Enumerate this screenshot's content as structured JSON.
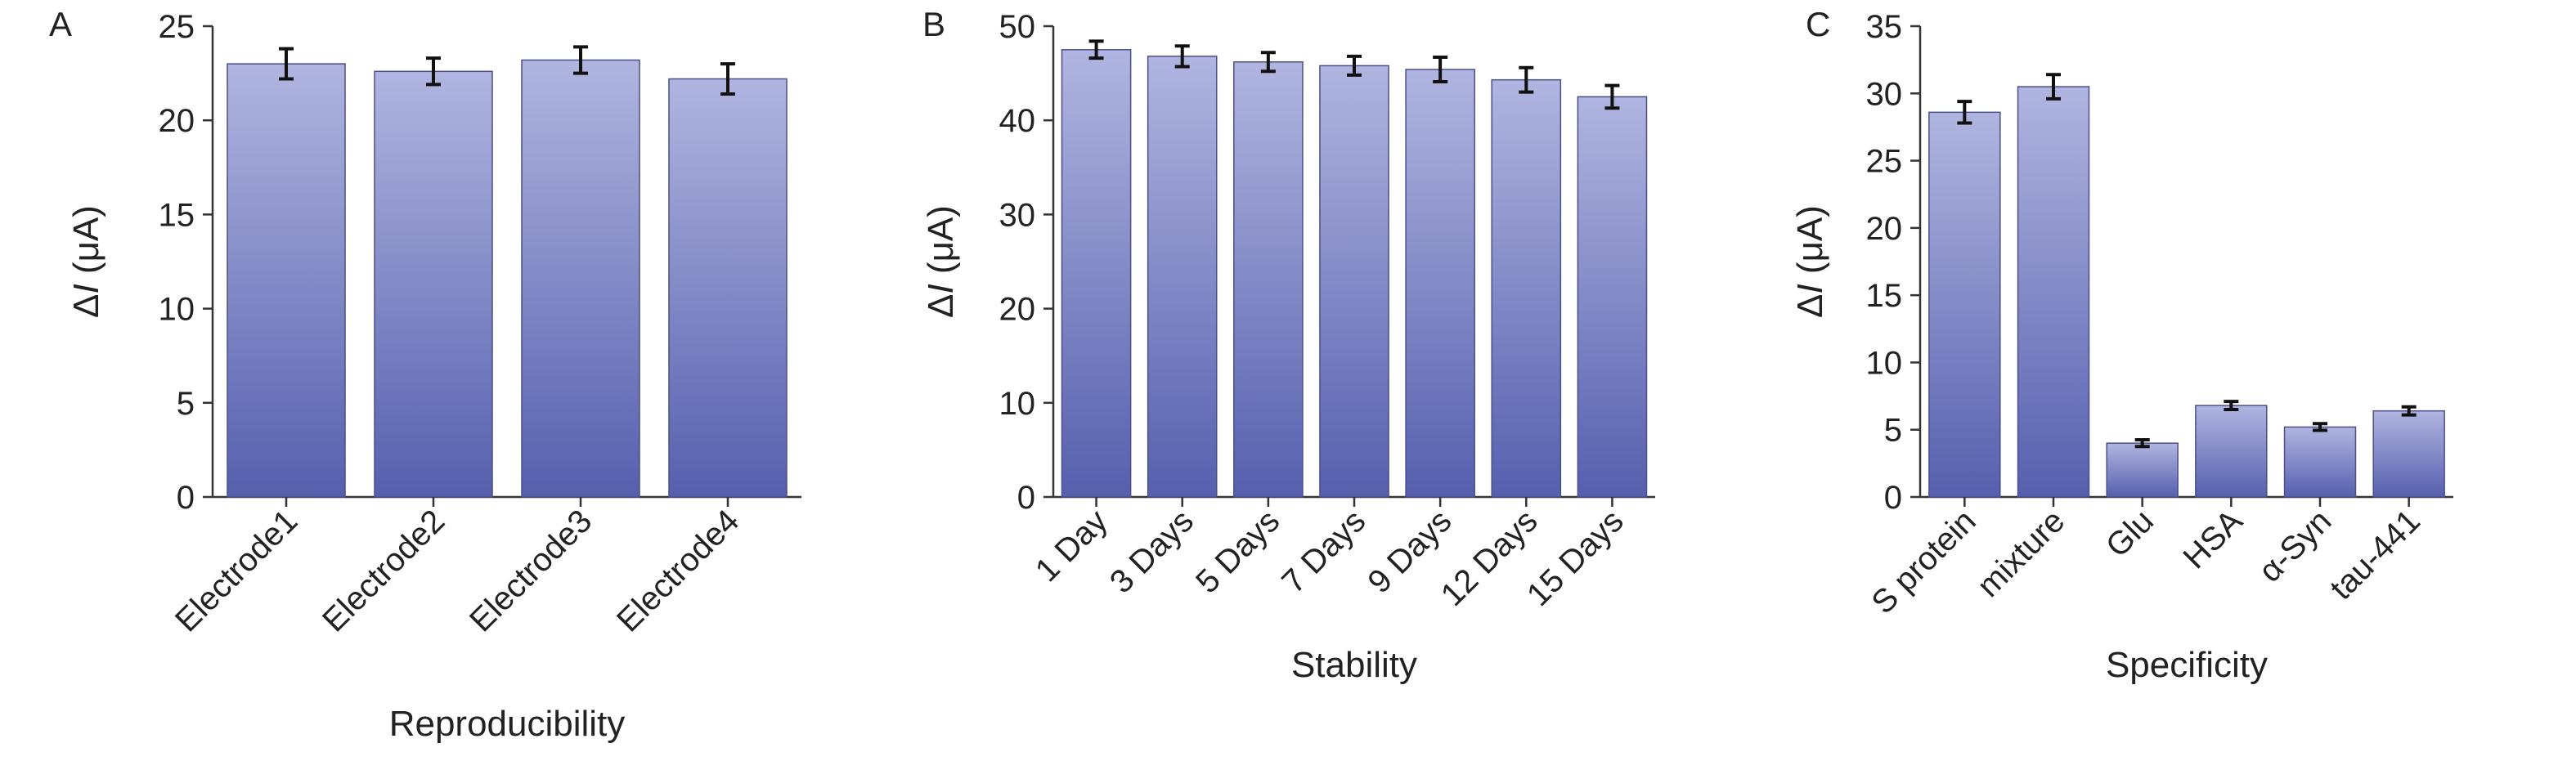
{
  "colors": {
    "bar_top": "#b0b5e0",
    "bar_bottom": "#5560ae",
    "axis": "#333333",
    "text": "#222222"
  },
  "chart_data": [
    {
      "panel": "A",
      "type": "bar",
      "xlabel": "Reproducibility",
      "ylabel": "ΔI (μA)",
      "ylim": [
        0,
        25
      ],
      "yticks": [
        0,
        5,
        10,
        15,
        20,
        25
      ],
      "categories": [
        "Electrode1",
        "Electrode2",
        "Electrode3",
        "Electrode4"
      ],
      "values": [
        23.0,
        22.6,
        23.2,
        22.2
      ],
      "errors": [
        0.8,
        0.7,
        0.7,
        0.8
      ],
      "grid": false,
      "legend": "none"
    },
    {
      "panel": "B",
      "type": "bar",
      "xlabel": "Stability",
      "ylabel": "ΔI (μA)",
      "ylim": [
        0,
        50
      ],
      "yticks": [
        0,
        10,
        20,
        30,
        40,
        50
      ],
      "categories": [
        "1 Day",
        "3 Days",
        "5 Days",
        "7 Days",
        "9 Days",
        "12 Days",
        "15 Days"
      ],
      "values": [
        47.5,
        46.8,
        46.2,
        45.8,
        45.4,
        44.3,
        42.5
      ],
      "errors": [
        0.9,
        1.1,
        1.0,
        1.0,
        1.3,
        1.3,
        1.2
      ],
      "grid": false,
      "legend": "none"
    },
    {
      "panel": "C",
      "type": "bar",
      "xlabel": "Specificity",
      "ylabel": "ΔI (μA)",
      "ylim": [
        0,
        35
      ],
      "yticks": [
        0,
        5,
        10,
        15,
        20,
        25,
        30,
        35
      ],
      "categories": [
        "S protein",
        "mixture",
        "Glu",
        "HSA",
        "α-Syn",
        "tau-441"
      ],
      "values": [
        28.6,
        30.5,
        4.0,
        6.8,
        5.2,
        6.4
      ],
      "errors": [
        0.8,
        0.9,
        0.25,
        0.3,
        0.25,
        0.3
      ],
      "grid": false,
      "legend": "none"
    }
  ]
}
